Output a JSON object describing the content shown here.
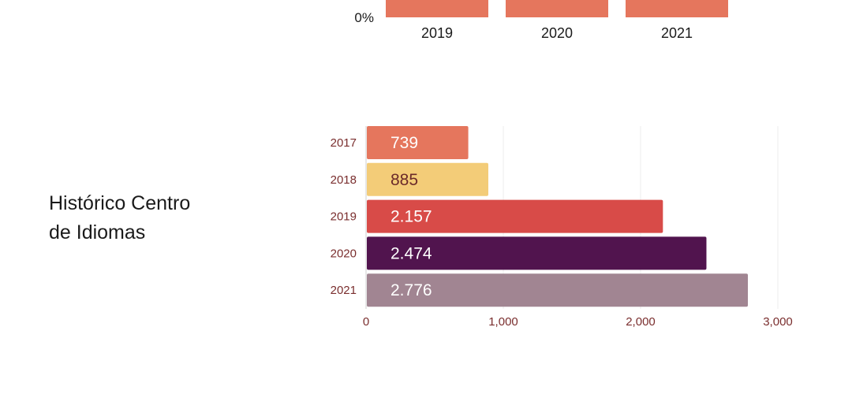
{
  "section": {
    "title_line1": "Histórico Centro",
    "title_line2": "de Idiomas"
  },
  "chart_data": [
    {
      "type": "bar",
      "orientation": "vertical",
      "partial": true,
      "categories": [
        "2019",
        "2020",
        "2021"
      ],
      "y_ticks_visible": [
        "0%"
      ],
      "colors": [
        "#E5765D",
        "#E5765D",
        "#E5765D"
      ]
    },
    {
      "type": "bar",
      "orientation": "horizontal",
      "title": "Histórico Centro de Idiomas",
      "categories": [
        "2017",
        "2018",
        "2019",
        "2020",
        "2021"
      ],
      "values": [
        739,
        885,
        2157,
        2474,
        2776
      ],
      "data_labels": [
        "739",
        "885",
        "2.157",
        "2.474",
        "2.776"
      ],
      "xlim": [
        0,
        3000
      ],
      "x_ticks": [
        0,
        1000,
        2000,
        3000
      ],
      "x_tick_labels": [
        "0",
        "1,000",
        "2,000",
        "3,000"
      ],
      "grid": true,
      "colors": [
        "#E5765D",
        "#F3CC78",
        "#D84B48",
        "#51144E",
        "#A18592"
      ],
      "label_colors": [
        "#ffffff",
        "#6b2a2a",
        "#ffffff",
        "#ffffff",
        "#ffffff"
      ],
      "category_label_color": "#7a2e2e",
      "tick_label_color": "#7a2e2e"
    }
  ]
}
